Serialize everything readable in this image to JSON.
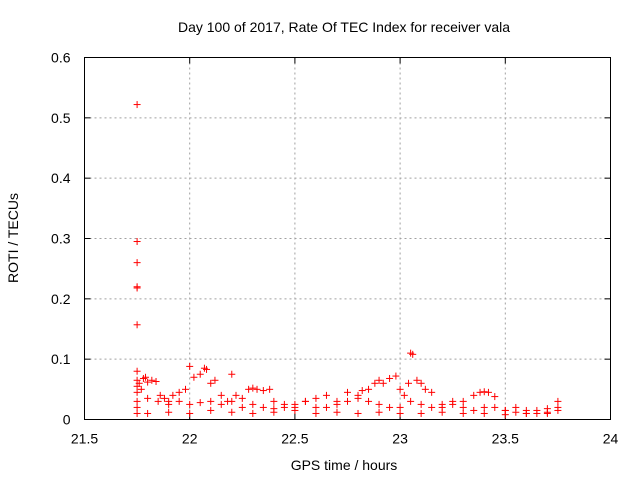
{
  "chart_data": {
    "type": "scatter",
    "title": "Day 100 of 2017, Rate Of TEC Index for receiver vala",
    "xlabel": "GPS time / hours",
    "ylabel": "ROTI / TECUs",
    "xlim": [
      21.5,
      24
    ],
    "ylim": [
      0,
      0.6
    ],
    "xticks": [
      "21.5",
      "22",
      "22.5",
      "23",
      "23.5",
      "24"
    ],
    "yticks": [
      "0",
      "0.1",
      "0.2",
      "0.3",
      "0.4",
      "0.5",
      "0.6"
    ],
    "grid": true,
    "marker": "plus",
    "color": "#ff0000",
    "series": [
      {
        "x": [
          21.75,
          21.75,
          21.75,
          21.75,
          21.75,
          21.75,
          21.75,
          21.75,
          21.75,
          21.75,
          21.75,
          21.75,
          21.75,
          21.76,
          21.77,
          21.78,
          21.79,
          21.8,
          21.82,
          21.84,
          21.86,
          21.88,
          21.9,
          21.92,
          21.95,
          21.98,
          22.0,
          22.02,
          22.05,
          22.07,
          22.08,
          22.1,
          22.12,
          22.15,
          22.18,
          22.2,
          22.22,
          22.25,
          22.28,
          22.3,
          22.32,
          22.35,
          22.38,
          22.4,
          22.45,
          22.5,
          22.55,
          22.6,
          22.65,
          22.7,
          22.75,
          22.8,
          22.82,
          22.85,
          22.88,
          22.9,
          22.92,
          22.95,
          22.98,
          23.0,
          23.02,
          23.04,
          23.05,
          23.06,
          23.08,
          23.1,
          23.12,
          23.15,
          23.2,
          23.25,
          23.3,
          23.35,
          23.38,
          23.4,
          23.42,
          23.45,
          23.5,
          23.55,
          23.6,
          23.65,
          23.7,
          23.75,
          21.8,
          21.85,
          21.9,
          21.95,
          22.0,
          22.05,
          22.1,
          22.15,
          22.2,
          22.25,
          22.3,
          22.35,
          22.4,
          22.45,
          22.5,
          22.55,
          22.6,
          22.65,
          22.7,
          22.75,
          22.8,
          22.85,
          22.9,
          22.95,
          23.0,
          23.05,
          23.1,
          23.15,
          23.2,
          23.25,
          23.3,
          23.35,
          23.4,
          23.45,
          23.5,
          23.55,
          23.6,
          23.65,
          23.7,
          23.75,
          21.8,
          21.9,
          22.0,
          22.1,
          22.2,
          22.3,
          22.4,
          22.5,
          22.6,
          22.7,
          22.8,
          22.9,
          23.0,
          23.1,
          23.2,
          23.3,
          23.4,
          23.5,
          23.6,
          23.7,
          23.75
        ],
        "y": [
          0.522,
          0.295,
          0.26,
          0.22,
          0.218,
          0.157,
          0.08,
          0.065,
          0.055,
          0.045,
          0.03,
          0.02,
          0.01,
          0.06,
          0.05,
          0.068,
          0.07,
          0.062,
          0.065,
          0.063,
          0.04,
          0.035,
          0.03,
          0.04,
          0.045,
          0.05,
          0.088,
          0.07,
          0.075,
          0.085,
          0.083,
          0.06,
          0.065,
          0.04,
          0.03,
          0.075,
          0.04,
          0.035,
          0.05,
          0.052,
          0.05,
          0.048,
          0.05,
          0.03,
          0.025,
          0.02,
          0.03,
          0.035,
          0.04,
          0.03,
          0.045,
          0.04,
          0.048,
          0.05,
          0.06,
          0.065,
          0.06,
          0.068,
          0.072,
          0.05,
          0.04,
          0.06,
          0.11,
          0.108,
          0.065,
          0.06,
          0.05,
          0.045,
          0.02,
          0.025,
          0.03,
          0.04,
          0.045,
          0.046,
          0.045,
          0.038,
          0.015,
          0.012,
          0.01,
          0.015,
          0.018,
          0.02,
          0.035,
          0.03,
          0.025,
          0.03,
          0.025,
          0.028,
          0.03,
          0.025,
          0.03,
          0.02,
          0.025,
          0.02,
          0.018,
          0.02,
          0.025,
          0.03,
          0.02,
          0.02,
          0.025,
          0.03,
          0.035,
          0.03,
          0.025,
          0.02,
          0.02,
          0.03,
          0.025,
          0.02,
          0.025,
          0.03,
          0.02,
          0.015,
          0.02,
          0.02,
          0.015,
          0.02,
          0.015,
          0.01,
          0.012,
          0.03,
          0.01,
          0.012,
          0.01,
          0.015,
          0.012,
          0.01,
          0.012,
          0.015,
          0.01,
          0.012,
          0.01,
          0.012,
          0.01,
          0.01,
          0.012,
          0.01,
          0.01,
          0.008,
          0.01,
          0.01,
          0.015
        ]
      }
    ]
  }
}
